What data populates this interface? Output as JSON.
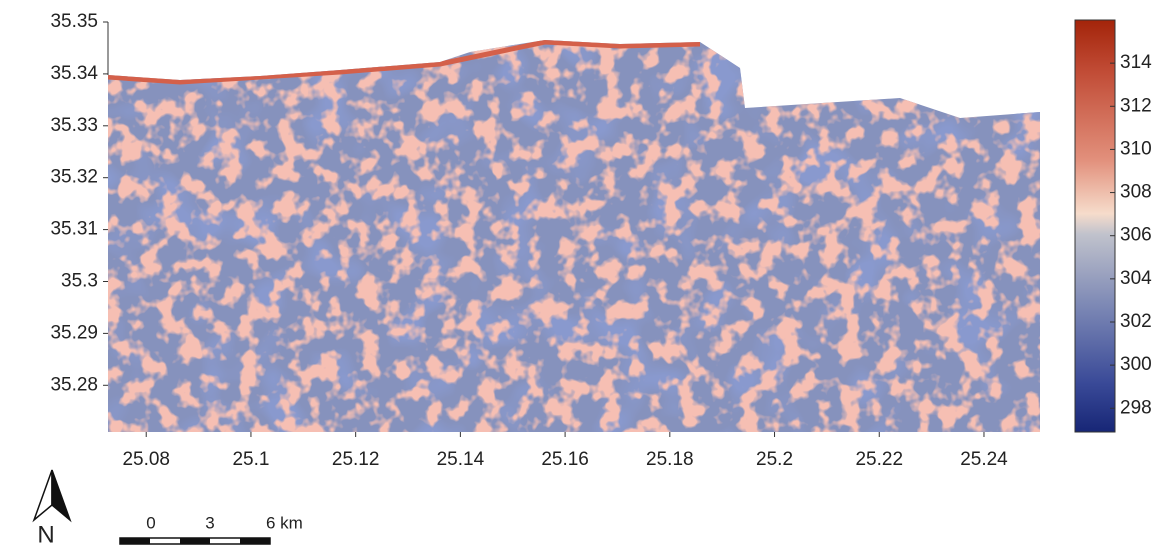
{
  "map": {
    "xlim": [
      25.0727,
      25.2507
    ],
    "ylim": [
      35.271,
      35.35
    ],
    "xticks": [
      25.08,
      25.1,
      25.12,
      25.14,
      25.16,
      25.18,
      25.2,
      25.22,
      25.24
    ],
    "yticks": [
      35.28,
      35.29,
      35.3,
      35.31,
      35.32,
      35.33,
      35.34,
      35.35
    ]
  },
  "colorbar": {
    "lim": [
      296.9,
      316
    ],
    "ticks": [
      298,
      300,
      302,
      304,
      306,
      308,
      310,
      312,
      314
    ]
  },
  "north_arrow": {
    "label": "N"
  },
  "scale_bar": {
    "labels": [
      "0",
      "3",
      "6 km"
    ]
  }
}
